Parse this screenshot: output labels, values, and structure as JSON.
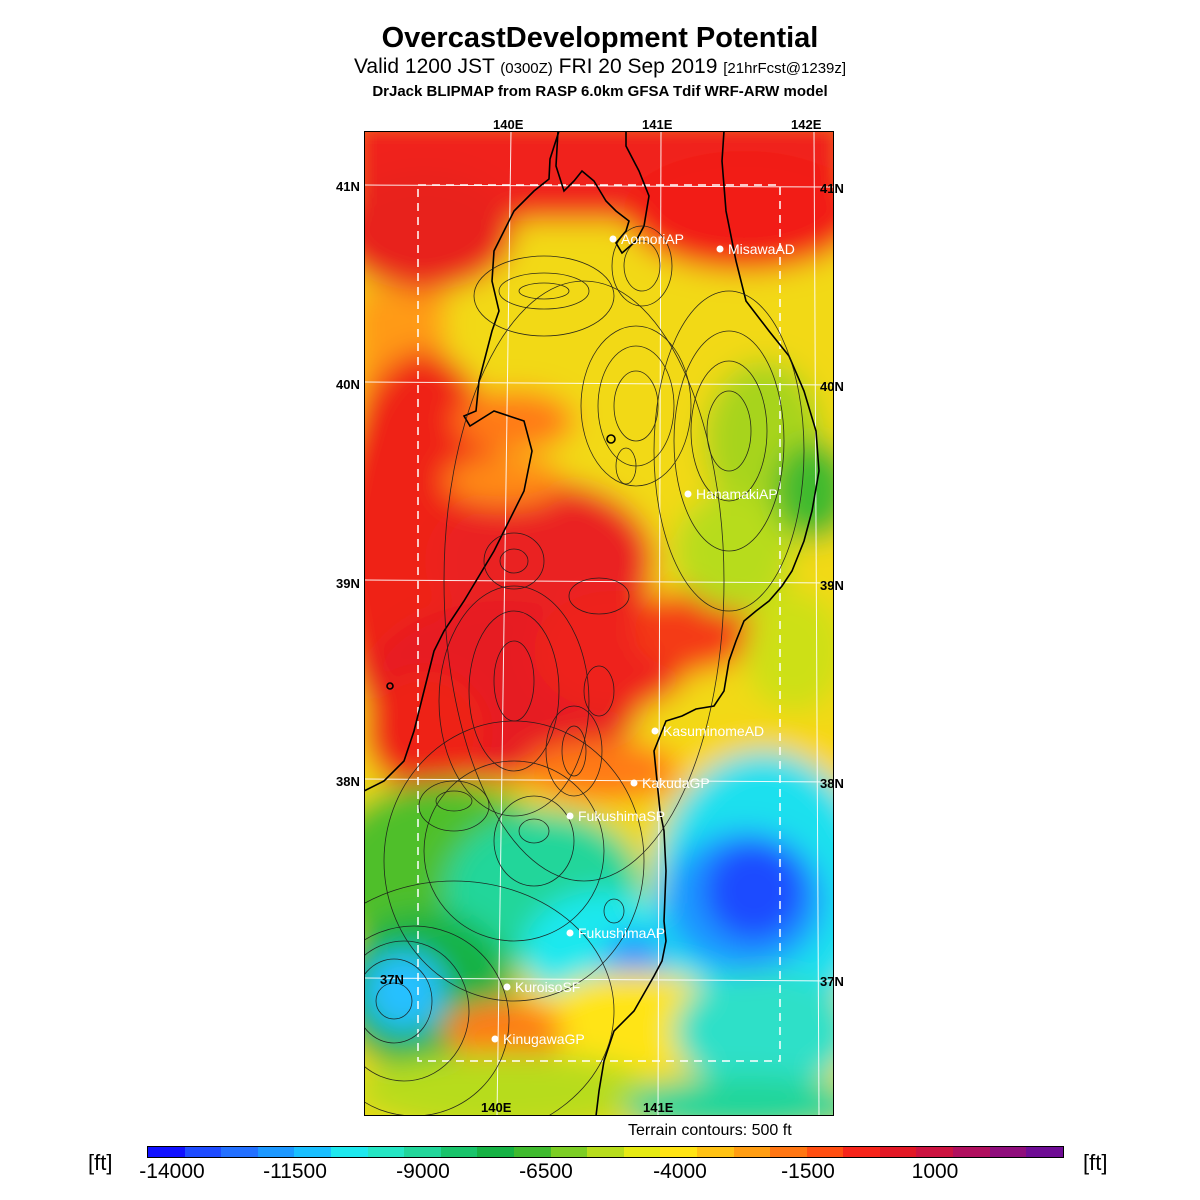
{
  "header": {
    "title": "OvercastDevelopment Potential",
    "valid_main": "Valid 1200 JST",
    "valid_utc": "(0300Z)",
    "valid_date": "FRI 20 Sep 2019",
    "forecast": "[21hrFcst@1239z]",
    "model": "DrJack BLIPMAP from RASP 6.0km GFSA Tdif WRF-ARW model"
  },
  "axes": {
    "lon_top": [
      "140E",
      "141E",
      "142E"
    ],
    "lon_bottom": [
      "140E",
      "141E"
    ],
    "lat_left": [
      "41N",
      "40N",
      "39N",
      "38N",
      "37N"
    ],
    "lat_right": [
      "41N",
      "40N",
      "39N",
      "38N",
      "37N"
    ]
  },
  "stations": [
    {
      "name": "AomoriAP"
    },
    {
      "name": "MisawaAD"
    },
    {
      "name": "HanamakiAP"
    },
    {
      "name": "KasuminomeAD"
    },
    {
      "name": "KakudaGP"
    },
    {
      "name": "FukushimaSP"
    },
    {
      "name": "FukushimaAP"
    },
    {
      "name": "KuroisoSF"
    },
    {
      "name": "KinugawaGP"
    }
  ],
  "terrain_note": "Terrain contours: 500 ft",
  "colorbar": {
    "unit": "[ft]",
    "labels": [
      "-14000",
      "-11500",
      "-9000",
      "-6500",
      "-4000",
      "-1500",
      "1000"
    ],
    "colors": [
      "#1010ff",
      "#1e4bff",
      "#2370ff",
      "#1c98ff",
      "#19bfff",
      "#1ee8ee",
      "#25e6c4",
      "#21d69a",
      "#19c46b",
      "#16b244",
      "#3fba2e",
      "#7ccd24",
      "#b7dc1c",
      "#e6ea13",
      "#ffe414",
      "#ffc214",
      "#ff9d12",
      "#ff7612",
      "#ff4e11",
      "#f6241a",
      "#e21725",
      "#cc1240",
      "#b00f5e",
      "#8f0d7c",
      "#6e0c94"
    ]
  }
}
